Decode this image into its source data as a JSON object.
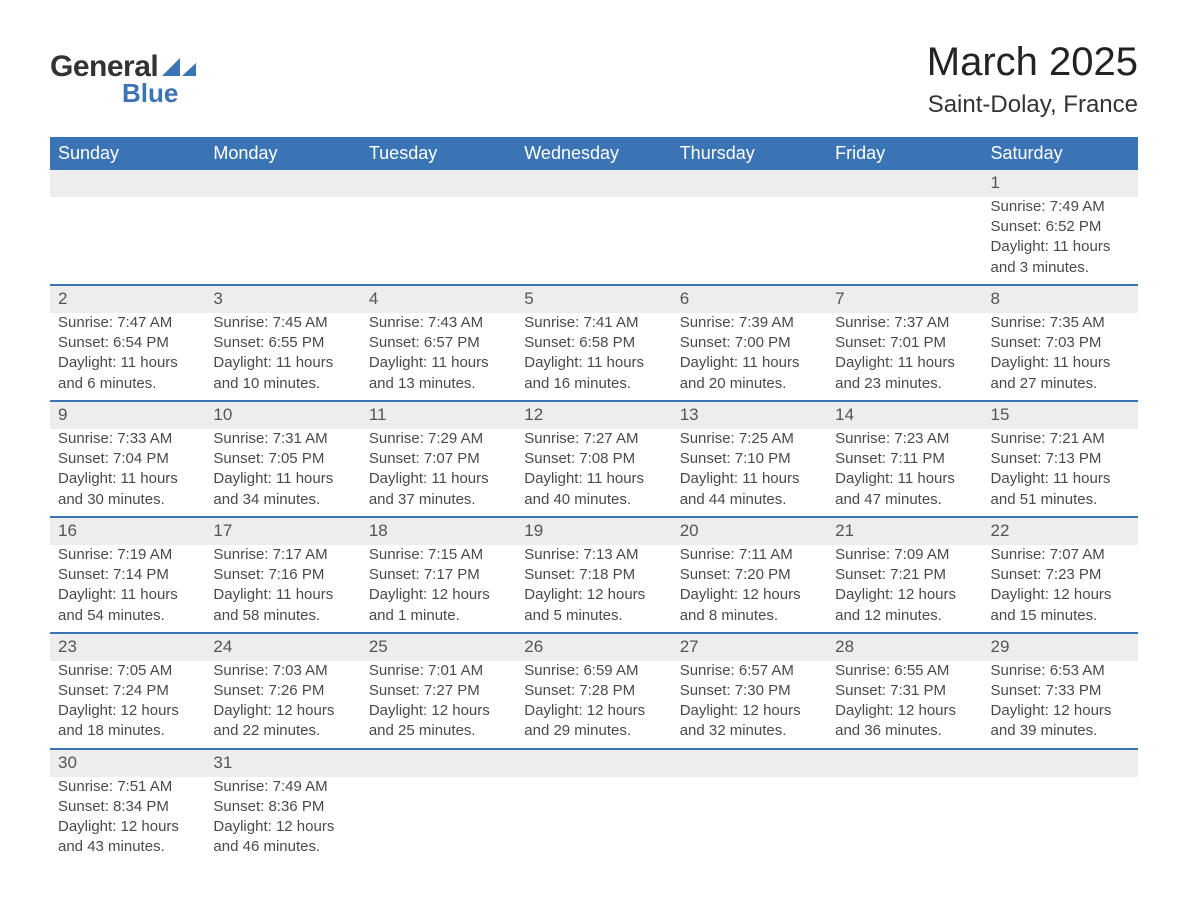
{
  "logo": {
    "text_general": "General",
    "text_blue": "Blue",
    "brand_color": "#3a74b4"
  },
  "header": {
    "title": "March 2025",
    "location": "Saint-Dolay, France"
  },
  "style": {
    "header_bg": "#3a74b4",
    "header_text": "#ffffff",
    "daynum_bg": "#ededed",
    "row_divider": "#3a74b4",
    "body_text": "#4a4a4a",
    "page_bg": "#ffffff",
    "title_fontsize": 40,
    "location_fontsize": 24,
    "dayname_fontsize": 18,
    "cell_fontsize": 15
  },
  "day_names": [
    "Sunday",
    "Monday",
    "Tuesday",
    "Wednesday",
    "Thursday",
    "Friday",
    "Saturday"
  ],
  "weeks": [
    [
      null,
      null,
      null,
      null,
      null,
      null,
      {
        "n": "1",
        "sr": "Sunrise: 7:49 AM",
        "ss": "Sunset: 6:52 PM",
        "d1": "Daylight: 11 hours",
        "d2": "and 3 minutes."
      }
    ],
    [
      {
        "n": "2",
        "sr": "Sunrise: 7:47 AM",
        "ss": "Sunset: 6:54 PM",
        "d1": "Daylight: 11 hours",
        "d2": "and 6 minutes."
      },
      {
        "n": "3",
        "sr": "Sunrise: 7:45 AM",
        "ss": "Sunset: 6:55 PM",
        "d1": "Daylight: 11 hours",
        "d2": "and 10 minutes."
      },
      {
        "n": "4",
        "sr": "Sunrise: 7:43 AM",
        "ss": "Sunset: 6:57 PM",
        "d1": "Daylight: 11 hours",
        "d2": "and 13 minutes."
      },
      {
        "n": "5",
        "sr": "Sunrise: 7:41 AM",
        "ss": "Sunset: 6:58 PM",
        "d1": "Daylight: 11 hours",
        "d2": "and 16 minutes."
      },
      {
        "n": "6",
        "sr": "Sunrise: 7:39 AM",
        "ss": "Sunset: 7:00 PM",
        "d1": "Daylight: 11 hours",
        "d2": "and 20 minutes."
      },
      {
        "n": "7",
        "sr": "Sunrise: 7:37 AM",
        "ss": "Sunset: 7:01 PM",
        "d1": "Daylight: 11 hours",
        "d2": "and 23 minutes."
      },
      {
        "n": "8",
        "sr": "Sunrise: 7:35 AM",
        "ss": "Sunset: 7:03 PM",
        "d1": "Daylight: 11 hours",
        "d2": "and 27 minutes."
      }
    ],
    [
      {
        "n": "9",
        "sr": "Sunrise: 7:33 AM",
        "ss": "Sunset: 7:04 PM",
        "d1": "Daylight: 11 hours",
        "d2": "and 30 minutes."
      },
      {
        "n": "10",
        "sr": "Sunrise: 7:31 AM",
        "ss": "Sunset: 7:05 PM",
        "d1": "Daylight: 11 hours",
        "d2": "and 34 minutes."
      },
      {
        "n": "11",
        "sr": "Sunrise: 7:29 AM",
        "ss": "Sunset: 7:07 PM",
        "d1": "Daylight: 11 hours",
        "d2": "and 37 minutes."
      },
      {
        "n": "12",
        "sr": "Sunrise: 7:27 AM",
        "ss": "Sunset: 7:08 PM",
        "d1": "Daylight: 11 hours",
        "d2": "and 40 minutes."
      },
      {
        "n": "13",
        "sr": "Sunrise: 7:25 AM",
        "ss": "Sunset: 7:10 PM",
        "d1": "Daylight: 11 hours",
        "d2": "and 44 minutes."
      },
      {
        "n": "14",
        "sr": "Sunrise: 7:23 AM",
        "ss": "Sunset: 7:11 PM",
        "d1": "Daylight: 11 hours",
        "d2": "and 47 minutes."
      },
      {
        "n": "15",
        "sr": "Sunrise: 7:21 AM",
        "ss": "Sunset: 7:13 PM",
        "d1": "Daylight: 11 hours",
        "d2": "and 51 minutes."
      }
    ],
    [
      {
        "n": "16",
        "sr": "Sunrise: 7:19 AM",
        "ss": "Sunset: 7:14 PM",
        "d1": "Daylight: 11 hours",
        "d2": "and 54 minutes."
      },
      {
        "n": "17",
        "sr": "Sunrise: 7:17 AM",
        "ss": "Sunset: 7:16 PM",
        "d1": "Daylight: 11 hours",
        "d2": "and 58 minutes."
      },
      {
        "n": "18",
        "sr": "Sunrise: 7:15 AM",
        "ss": "Sunset: 7:17 PM",
        "d1": "Daylight: 12 hours",
        "d2": "and 1 minute."
      },
      {
        "n": "19",
        "sr": "Sunrise: 7:13 AM",
        "ss": "Sunset: 7:18 PM",
        "d1": "Daylight: 12 hours",
        "d2": "and 5 minutes."
      },
      {
        "n": "20",
        "sr": "Sunrise: 7:11 AM",
        "ss": "Sunset: 7:20 PM",
        "d1": "Daylight: 12 hours",
        "d2": "and 8 minutes."
      },
      {
        "n": "21",
        "sr": "Sunrise: 7:09 AM",
        "ss": "Sunset: 7:21 PM",
        "d1": "Daylight: 12 hours",
        "d2": "and 12 minutes."
      },
      {
        "n": "22",
        "sr": "Sunrise: 7:07 AM",
        "ss": "Sunset: 7:23 PM",
        "d1": "Daylight: 12 hours",
        "d2": "and 15 minutes."
      }
    ],
    [
      {
        "n": "23",
        "sr": "Sunrise: 7:05 AM",
        "ss": "Sunset: 7:24 PM",
        "d1": "Daylight: 12 hours",
        "d2": "and 18 minutes."
      },
      {
        "n": "24",
        "sr": "Sunrise: 7:03 AM",
        "ss": "Sunset: 7:26 PM",
        "d1": "Daylight: 12 hours",
        "d2": "and 22 minutes."
      },
      {
        "n": "25",
        "sr": "Sunrise: 7:01 AM",
        "ss": "Sunset: 7:27 PM",
        "d1": "Daylight: 12 hours",
        "d2": "and 25 minutes."
      },
      {
        "n": "26",
        "sr": "Sunrise: 6:59 AM",
        "ss": "Sunset: 7:28 PM",
        "d1": "Daylight: 12 hours",
        "d2": "and 29 minutes."
      },
      {
        "n": "27",
        "sr": "Sunrise: 6:57 AM",
        "ss": "Sunset: 7:30 PM",
        "d1": "Daylight: 12 hours",
        "d2": "and 32 minutes."
      },
      {
        "n": "28",
        "sr": "Sunrise: 6:55 AM",
        "ss": "Sunset: 7:31 PM",
        "d1": "Daylight: 12 hours",
        "d2": "and 36 minutes."
      },
      {
        "n": "29",
        "sr": "Sunrise: 6:53 AM",
        "ss": "Sunset: 7:33 PM",
        "d1": "Daylight: 12 hours",
        "d2": "and 39 minutes."
      }
    ],
    [
      {
        "n": "30",
        "sr": "Sunrise: 7:51 AM",
        "ss": "Sunset: 8:34 PM",
        "d1": "Daylight: 12 hours",
        "d2": "and 43 minutes."
      },
      {
        "n": "31",
        "sr": "Sunrise: 7:49 AM",
        "ss": "Sunset: 8:36 PM",
        "d1": "Daylight: 12 hours",
        "d2": "and 46 minutes."
      },
      null,
      null,
      null,
      null,
      null
    ]
  ]
}
